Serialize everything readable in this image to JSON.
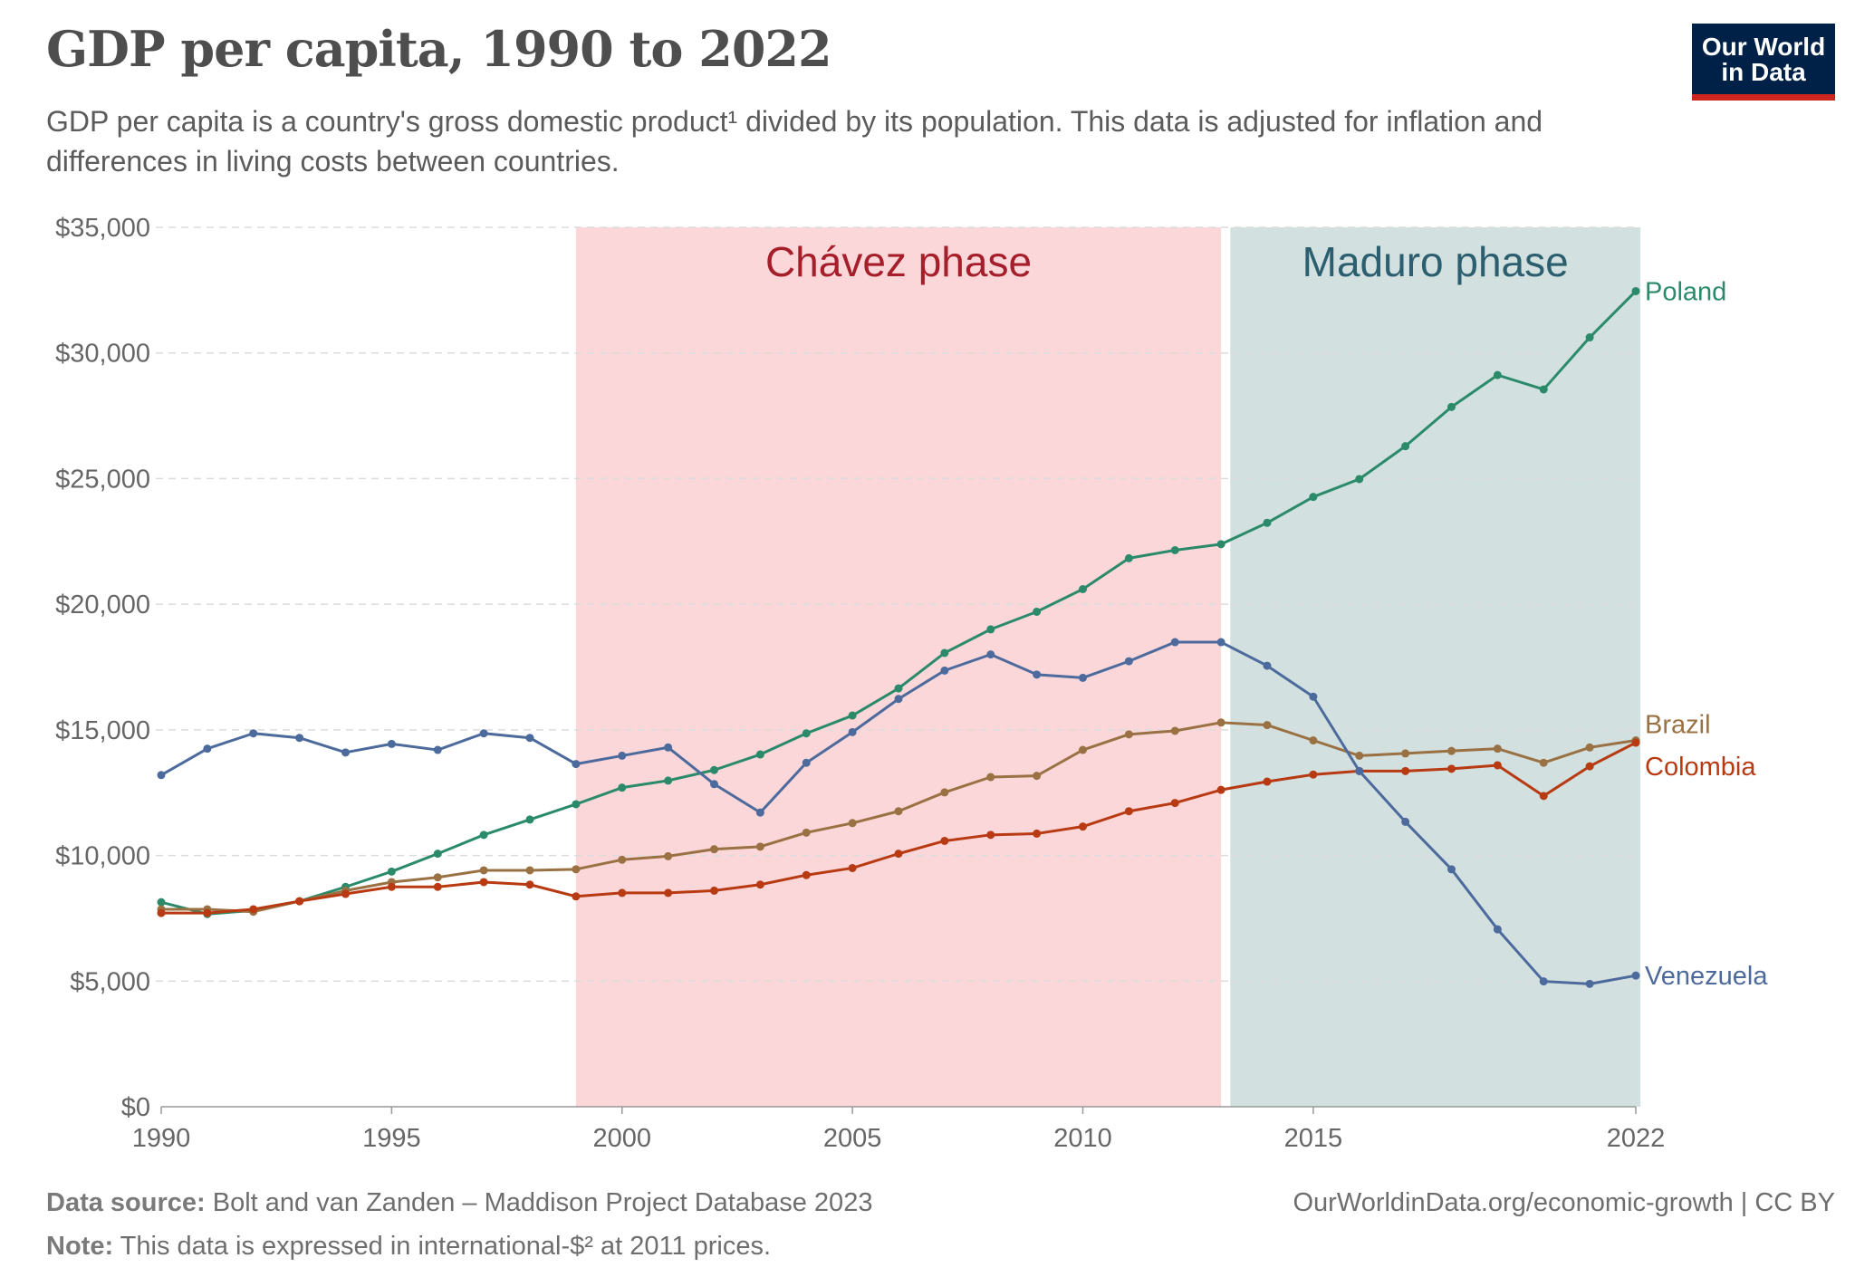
{
  "header": {
    "title": "GDP per capita, 1990 to 2022",
    "subtitle": "GDP per capita is a country's gross domestic product¹ divided by its population. This data is adjusted for inflation and differences in living costs between countries.",
    "logo_text": "Our World in Data"
  },
  "footer": {
    "source_label": "Data source:",
    "source_text": "Bolt and van Zanden – Maddison Project Database 2023",
    "note_label": "Note:",
    "note_text": "This data is expressed in international-$² at 2011 prices.",
    "url": "OurWorldinData.org/economic-growth | CC BY"
  },
  "chart_data": {
    "type": "line",
    "title": "GDP per capita, 1990 to 2022",
    "xlabel": "",
    "ylabel": "",
    "xlim": [
      1990,
      2022
    ],
    "ylim": [
      0,
      35000
    ],
    "grid": true,
    "xticks": [
      1990,
      1995,
      2000,
      2005,
      2010,
      2015,
      2022
    ],
    "yticks": [
      0,
      5000,
      10000,
      15000,
      20000,
      25000,
      30000,
      35000
    ],
    "ytick_labels": [
      "$0",
      "$5,000",
      "$10,000",
      "$15,000",
      "$20,000",
      "$25,000",
      "$30,000",
      "$35,000"
    ],
    "annotations": [
      {
        "label": "Chávez phase",
        "from": 1999,
        "to": 2013,
        "color": "#fbd7da",
        "text_color": "#a51e2a"
      },
      {
        "label": "Maduro phase",
        "from": 2013.2,
        "to": 2022.1,
        "color": "#d2e0e0",
        "text_color": "#2b5e6e"
      }
    ],
    "x": [
      1990,
      1991,
      1992,
      1993,
      1994,
      1995,
      1996,
      1997,
      1998,
      1999,
      2000,
      2001,
      2002,
      2003,
      2004,
      2005,
      2006,
      2007,
      2008,
      2009,
      2010,
      2011,
      2012,
      2013,
      2014,
      2015,
      2016,
      2017,
      2018,
      2019,
      2020,
      2021,
      2022
    ],
    "series": [
      {
        "name": "Poland",
        "color": "#2a8a6a",
        "values": [
          8140,
          7670,
          7810,
          8180,
          8750,
          9360,
          10070,
          10820,
          11430,
          12040,
          12700,
          12980,
          13400,
          14020,
          14860,
          15570,
          16650,
          18060,
          19000,
          19700,
          20600,
          21830,
          22150,
          22390,
          23240,
          24270,
          24980,
          26290,
          27850,
          29120,
          28550,
          30620,
          32460
        ]
      },
      {
        "name": "Brazil",
        "color": "#9a7143",
        "values": [
          7860,
          7860,
          7760,
          8180,
          8600,
          8940,
          9130,
          9410,
          9410,
          9450,
          9830,
          9970,
          10250,
          10350,
          10910,
          11290,
          11760,
          12510,
          13120,
          13170,
          14200,
          14820,
          14960,
          15290,
          15190,
          14580,
          13970,
          14060,
          14160,
          14250,
          13690,
          14300,
          14580
        ]
      },
      {
        "name": "Colombia",
        "color": "#b83a12",
        "values": [
          7710,
          7710,
          7860,
          8180,
          8470,
          8750,
          8750,
          8940,
          8840,
          8370,
          8510,
          8510,
          8600,
          8840,
          9220,
          9500,
          10070,
          10580,
          10820,
          10870,
          11150,
          11760,
          12090,
          12610,
          12940,
          13220,
          13360,
          13360,
          13450,
          13590,
          12370,
          13550,
          14490
        ]
      },
      {
        "name": "Venezuela",
        "color": "#4c6a9c",
        "values": [
          13200,
          14250,
          14860,
          14680,
          14100,
          14440,
          14200,
          14860,
          14680,
          13640,
          13970,
          14300,
          12840,
          11710,
          13690,
          14910,
          16230,
          17360,
          18000,
          17200,
          17070,
          17730,
          18490,
          18490,
          17550,
          16320,
          13360,
          11340,
          9450,
          7060,
          4990,
          4890,
          5220
        ]
      }
    ]
  }
}
